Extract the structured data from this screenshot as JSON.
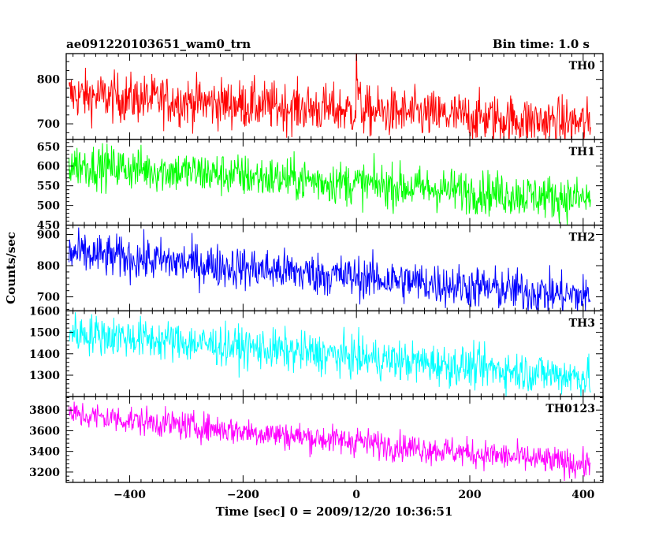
{
  "header": {
    "title": "ae091220103651_wam0_trn",
    "bin_time": "Bin time: 1.0 s"
  },
  "chart_data": {
    "type": "line",
    "xlabel": "Time [sec] 0 = 2009/12/20 10:36:51",
    "ylabel": "Counts/sec",
    "xlim": [
      -512,
      435
    ],
    "x_ticks": [
      -400,
      -200,
      0,
      200,
      400
    ],
    "x_data_range": [
      -507,
      413
    ],
    "bin_time_s": 1.0,
    "panels": [
      {
        "name": "TH0",
        "color": "#ff0000",
        "ylim": [
          665,
          858
        ],
        "y_ticks": [
          700,
          800
        ],
        "start": 765,
        "end": 700,
        "noise": 28,
        "events": [
          {
            "t": 0,
            "peak": 860
          }
        ]
      },
      {
        "name": "TH1",
        "color": "#00ff00",
        "ylim": [
          450,
          668
        ],
        "y_ticks": [
          450,
          500,
          550,
          600,
          650
        ],
        "start": 605,
        "end": 515,
        "noise": 28
      },
      {
        "name": "TH2",
        "color": "#0000ff",
        "ylim": [
          655,
          930
        ],
        "y_ticks": [
          700,
          800,
          900
        ],
        "start": 840,
        "end": 700,
        "noise": 35
      },
      {
        "name": "TH3",
        "color": "#00ffff",
        "ylim": [
          1200,
          1600
        ],
        "y_ticks": [
          1300,
          1400,
          1500,
          1600
        ],
        "start": 1500,
        "end": 1290,
        "noise": 48
      },
      {
        "name": "TH0123",
        "color": "#ff00ff",
        "ylim": [
          3100,
          3930
        ],
        "y_ticks": [
          3200,
          3400,
          3600,
          3800
        ],
        "start": 3760,
        "end": 3270,
        "noise": 70,
        "events": [
          {
            "t": 0,
            "peak": 3620
          }
        ]
      }
    ]
  }
}
